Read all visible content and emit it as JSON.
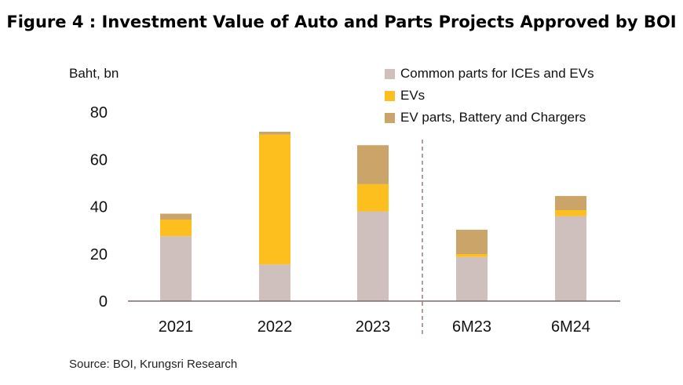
{
  "title": "Figure 4 : Investment Value of Auto and Parts Projects Approved by BOI",
  "source": "Source: BOI, Krungsri Research",
  "chart_data": {
    "type": "bar",
    "stacked": true,
    "title": "Figure 4 : Investment Value of Auto and Parts Projects Approved by BOI",
    "ylabel": "Baht, bn",
    "xlabel": "",
    "ylim": [
      0,
      80
    ],
    "yticks": [
      0,
      20,
      40,
      60,
      80
    ],
    "grid": false,
    "legend_position": "top-right",
    "separator_after_category": "2023",
    "categories": [
      "2021",
      "2022",
      "2023",
      "6M23",
      "6M24"
    ],
    "series": [
      {
        "name": "Common parts for ICEs and EVs",
        "color": "#cfc0bd",
        "values": [
          27.5,
          15.5,
          38,
          18.7,
          36
        ]
      },
      {
        "name": "EVs",
        "color": "#fcbf1d",
        "values": [
          7,
          55,
          11.5,
          1.2,
          2.5
        ]
      },
      {
        "name": "EV parts, Battery and Chargers",
        "color": "#caa468",
        "values": [
          2.5,
          1.2,
          16.5,
          10.3,
          6
        ]
      }
    ]
  }
}
